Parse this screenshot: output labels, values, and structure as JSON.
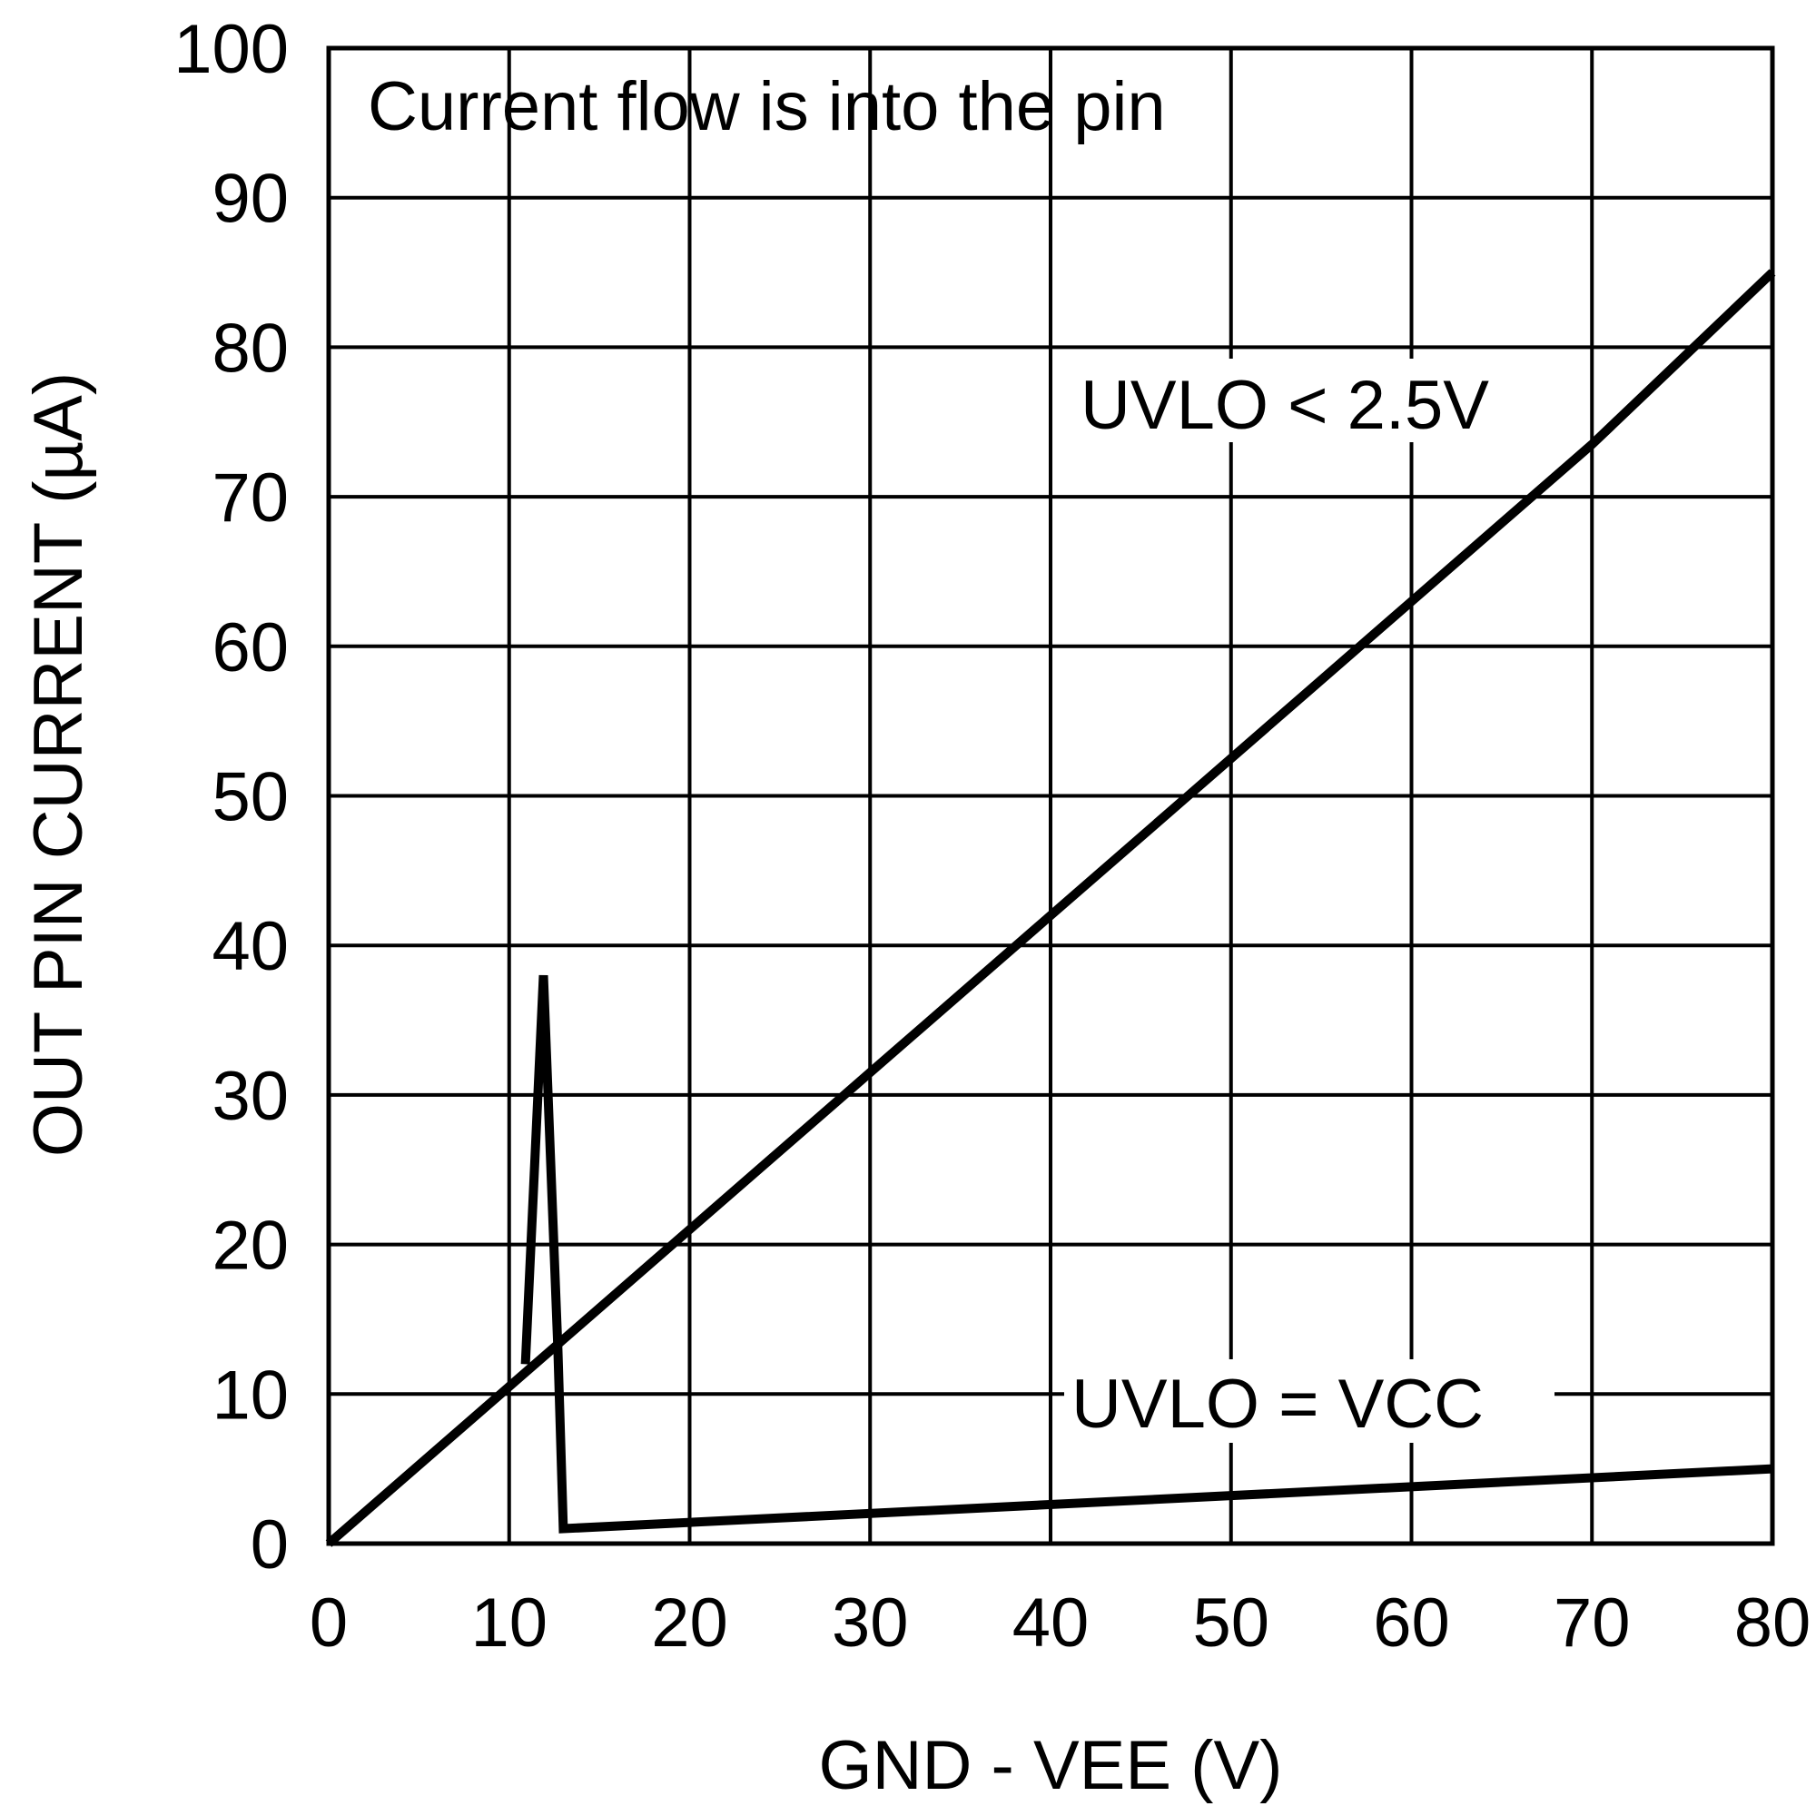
{
  "chart_data": {
    "type": "line",
    "title": "",
    "xlabel": "GND - VEE (V)",
    "ylabel": "OUT PIN CURRENT (µA)",
    "xlim": [
      0,
      80
    ],
    "ylim": [
      0,
      100
    ],
    "x_ticks": [
      0,
      10,
      20,
      30,
      40,
      50,
      60,
      70,
      80
    ],
    "y_ticks": [
      0,
      10,
      20,
      30,
      40,
      50,
      60,
      70,
      80,
      90,
      100
    ],
    "grid": true,
    "annotations": [
      "Current flow is into the pin",
      "UVLO < 2.5V",
      "UVLO = VCC"
    ],
    "series": [
      {
        "name": "UVLO < 2.5V",
        "x": [
          0,
          10,
          20,
          30,
          40,
          50,
          60,
          70,
          80
        ],
        "y": [
          0,
          10.5,
          21,
          31.5,
          42,
          52.5,
          63,
          73.5,
          85
        ]
      },
      {
        "name": "UVLO = VCC",
        "x": [
          10.9,
          11.9,
          12.7,
          13,
          80
        ],
        "y": [
          12,
          38,
          13,
          1,
          5
        ]
      }
    ]
  }
}
